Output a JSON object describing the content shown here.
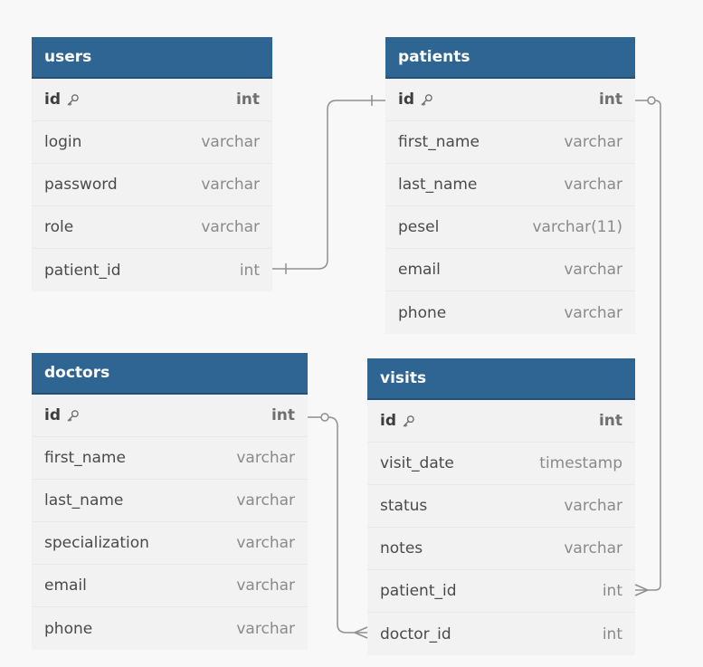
{
  "colors": {
    "header_bg": "#2f6593",
    "body_bg": "#f2f2f2",
    "canvas_bg": "#f8f8f8",
    "connector": "#8f8f8f"
  },
  "tables": {
    "users": {
      "name": "users",
      "fields": [
        {
          "name": "id",
          "type": "int",
          "pk": true
        },
        {
          "name": "login",
          "type": "varchar"
        },
        {
          "name": "password",
          "type": "varchar"
        },
        {
          "name": "role",
          "type": "varchar"
        },
        {
          "name": "patient_id",
          "type": "int"
        }
      ]
    },
    "patients": {
      "name": "patients",
      "fields": [
        {
          "name": "id",
          "type": "int",
          "pk": true
        },
        {
          "name": "first_name",
          "type": "varchar"
        },
        {
          "name": "last_name",
          "type": "varchar"
        },
        {
          "name": "pesel",
          "type": "varchar(11)"
        },
        {
          "name": "email",
          "type": "varchar"
        },
        {
          "name": "phone",
          "type": "varchar"
        }
      ]
    },
    "doctors": {
      "name": "doctors",
      "fields": [
        {
          "name": "id",
          "type": "int",
          "pk": true
        },
        {
          "name": "first_name",
          "type": "varchar"
        },
        {
          "name": "last_name",
          "type": "varchar"
        },
        {
          "name": "specialization",
          "type": "varchar"
        },
        {
          "name": "email",
          "type": "varchar"
        },
        {
          "name": "phone",
          "type": "varchar"
        }
      ]
    },
    "visits": {
      "name": "visits",
      "fields": [
        {
          "name": "id",
          "type": "int",
          "pk": true
        },
        {
          "name": "visit_date",
          "type": "timestamp"
        },
        {
          "name": "status",
          "type": "varchar"
        },
        {
          "name": "notes",
          "type": "varchar"
        },
        {
          "name": "patient_id",
          "type": "int"
        },
        {
          "name": "doctor_id",
          "type": "int"
        }
      ]
    }
  },
  "relationships": [
    {
      "from": "users.patient_id",
      "to": "patients.id",
      "kind": "one-to-one"
    },
    {
      "from": "visits.patient_id",
      "to": "patients.id",
      "kind": "many-to-one"
    },
    {
      "from": "visits.doctor_id",
      "to": "doctors.id",
      "kind": "many-to-one"
    }
  ],
  "icons": {
    "primary_key": "key-icon"
  }
}
